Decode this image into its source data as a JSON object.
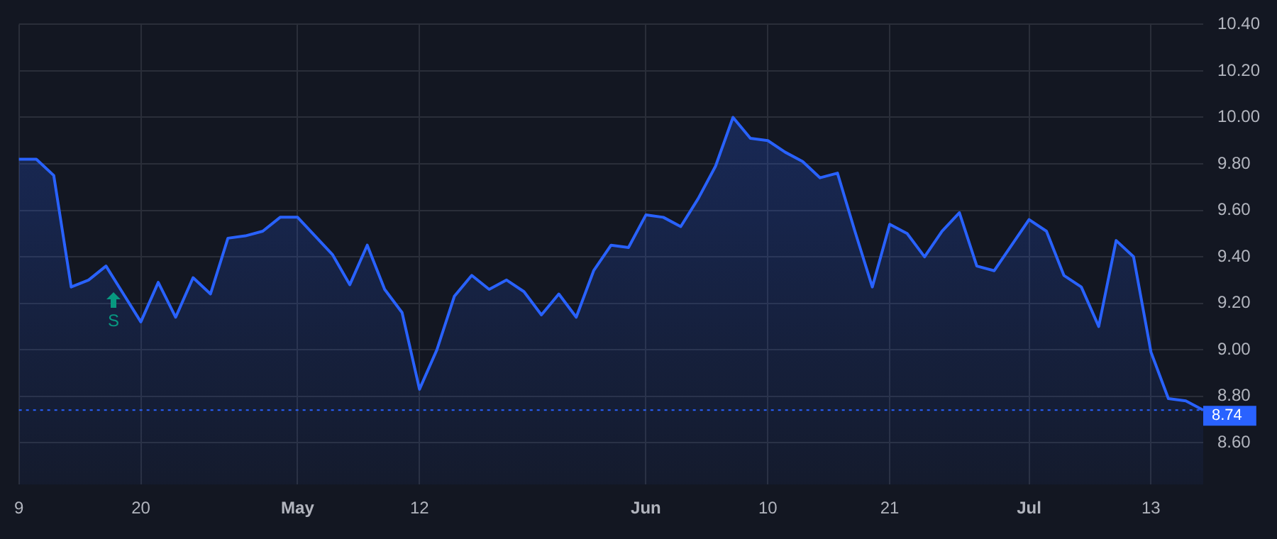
{
  "chart_data": {
    "type": "area",
    "categories": [
      "9",
      null,
      null,
      null,
      null,
      null,
      null,
      "20",
      null,
      null,
      null,
      null,
      null,
      null,
      null,
      null,
      "May",
      null,
      null,
      null,
      null,
      null,
      null,
      "12",
      null,
      null,
      null,
      null,
      null,
      null,
      null,
      null,
      null,
      null,
      null,
      null,
      "Jun",
      null,
      null,
      null,
      null,
      null,
      null,
      "10",
      null,
      null,
      null,
      null,
      null,
      null,
      "21",
      null,
      null,
      null,
      null,
      null,
      null,
      null,
      "Jul",
      null,
      null,
      null,
      null,
      null,
      null,
      "13",
      null,
      null,
      null
    ],
    "series": [
      {
        "color": "#2962ff",
        "values": [
          9.82,
          9.82,
          9.75,
          9.27,
          9.3,
          9.36,
          9.24,
          9.12,
          9.29,
          9.14,
          9.31,
          9.24,
          9.48,
          9.49,
          9.51,
          9.57,
          9.57,
          9.49,
          9.41,
          9.28,
          9.45,
          9.26,
          9.16,
          8.83,
          9.0,
          9.23,
          9.32,
          9.26,
          9.3,
          9.25,
          9.15,
          9.24,
          9.14,
          9.34,
          9.45,
          9.44,
          9.58,
          9.57,
          9.53,
          9.65,
          9.79,
          10.0,
          9.91,
          9.9,
          9.85,
          9.81,
          9.74,
          9.76,
          9.51,
          9.27,
          9.54,
          9.5,
          9.4,
          9.51,
          9.59,
          9.36,
          9.34,
          9.45,
          9.56,
          9.51,
          9.32,
          9.27,
          9.1,
          9.47,
          9.4,
          8.99,
          8.79,
          8.78,
          8.74
        ]
      }
    ],
    "ylim": [
      8.42,
      10.4
    ],
    "yticks": [
      {
        "value": 8.6,
        "label": "8.60"
      },
      {
        "value": 8.8,
        "label": "8.80"
      },
      {
        "value": 9.0,
        "label": "9.00"
      },
      {
        "value": 9.2,
        "label": "9.20"
      },
      {
        "value": 9.4,
        "label": "9.40"
      },
      {
        "value": 9.6,
        "label": "9.60"
      },
      {
        "value": 9.8,
        "label": "9.80"
      },
      {
        "value": 10.0,
        "label": "10.00"
      },
      {
        "value": 10.2,
        "label": "10.20"
      },
      {
        "value": 10.4,
        "label": "10.40"
      }
    ],
    "ref_lines": [
      {
        "axis": "y",
        "value": 8.74,
        "label": "8.74",
        "color": "#2962ff",
        "line_style": "dotted"
      }
    ],
    "annotations": [
      "S"
    ],
    "grid": true,
    "legend": false,
    "marker": "none",
    "line_style": "solid"
  }
}
